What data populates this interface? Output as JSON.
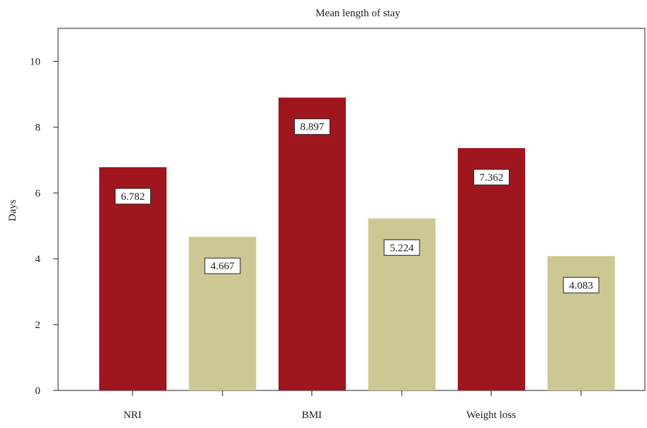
{
  "chart_data": {
    "type": "bar",
    "title": "Mean length of stay",
    "xlabel": "",
    "ylabel": "Days",
    "ylim": [
      0,
      11
    ],
    "yticks": [
      0,
      2,
      4,
      6,
      8,
      10
    ],
    "categories": [
      "NRI",
      "BMI",
      "Weight loss"
    ],
    "bars": [
      {
        "category": "NRI",
        "value": 6.782,
        "label": "6.782",
        "color": "#a0161f"
      },
      {
        "category": "NRI",
        "value": 4.667,
        "label": "4.667",
        "color": "#cdc893"
      },
      {
        "category": "BMI",
        "value": 8.897,
        "label": "8.897",
        "color": "#a0161f"
      },
      {
        "category": "BMI",
        "value": 5.224,
        "label": "5.224",
        "color": "#cdc893"
      },
      {
        "category": "Weight loss",
        "value": 7.362,
        "label": "7.362",
        "color": "#a0161f"
      },
      {
        "category": "Weight loss",
        "value": 4.083,
        "label": "4.083",
        "color": "#cdc893"
      }
    ],
    "grid": false,
    "legend": "none"
  }
}
